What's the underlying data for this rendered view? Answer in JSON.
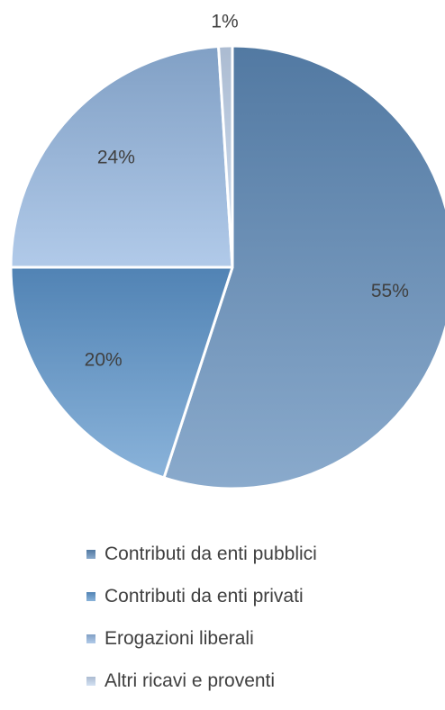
{
  "chart_data": {
    "type": "pie",
    "title": "",
    "start_angle_deg": 0,
    "direction": "clockwise",
    "legend_position": "bottom",
    "slices": [
      {
        "name": "Contributi da enti pubblici",
        "value": 55,
        "label": "55%",
        "color": "#5d89b8"
      },
      {
        "name": "Contributi da enti privati",
        "value": 20,
        "label": "20%",
        "color": "#5c95cc"
      },
      {
        "name": "Erogazioni liberali",
        "value": 24,
        "label": "24%",
        "color": "#93b6e0"
      },
      {
        "name": "Altri ricavi e proventi",
        "value": 1,
        "label": "1%",
        "color": "#c2d5ee"
      }
    ]
  }
}
